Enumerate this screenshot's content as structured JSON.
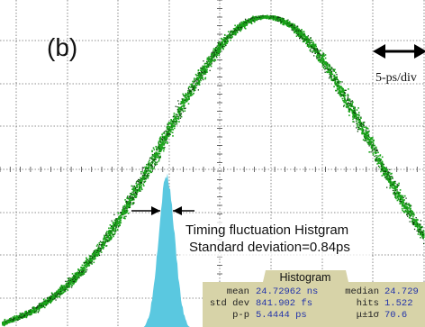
{
  "panel_label": "(b)",
  "scale_label": "5-ps/div",
  "annotation": {
    "line1": "Timing fluctuation Histgram",
    "line2": "Standard deviation=0.84ps"
  },
  "histogram_panel": {
    "title": "Histogram",
    "rows": [
      {
        "k1": "mean",
        "v1": "24.72962 ns",
        "k2": "median",
        "v2": "24.729"
      },
      {
        "k1": "std dev",
        "v1": "841.902 fs",
        "k2": "hits",
        "v2": "1.522"
      },
      {
        "k1": "p-p",
        "v1": "5.4444 ps",
        "k2": "μ±1σ",
        "v2": "70.6"
      }
    ]
  },
  "colors": {
    "trace": "#1aa31a",
    "trace_dark": "#0a3d0a",
    "histogram": "#5ac8e0",
    "panel_bg": "#d7d3a8",
    "panel_text": "#2233aa",
    "grid": "#6c6c6c"
  }
}
